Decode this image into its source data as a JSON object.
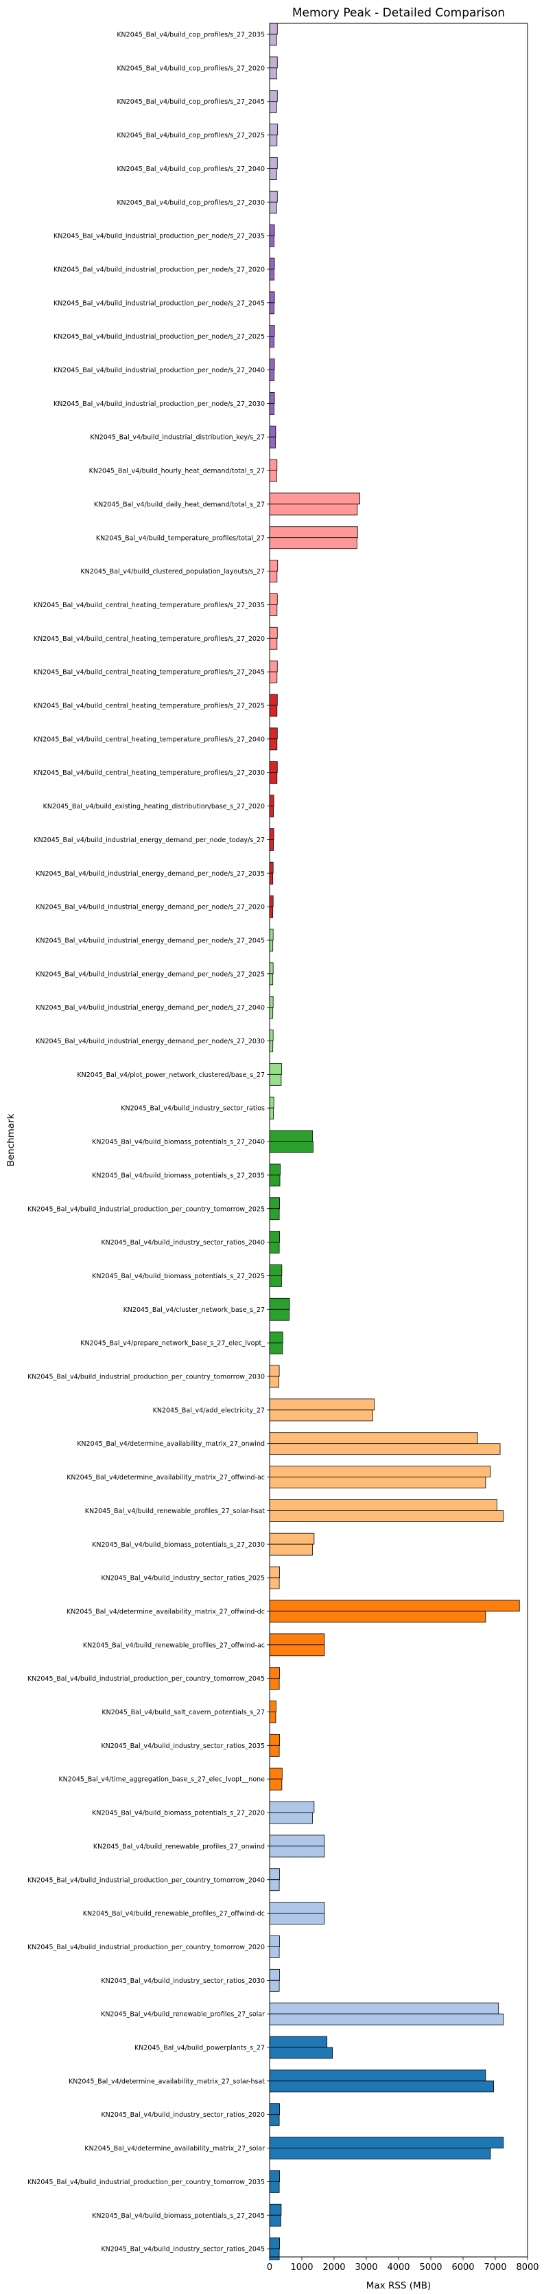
{
  "chart_data": {
    "type": "bar",
    "orientation": "horizontal",
    "title": "Memory Peak - Detailed Comparison",
    "xlabel": "Max RSS (MB)",
    "ylabel": "Benchmark",
    "xlim": [
      0,
      8000
    ],
    "xticks": [
      0,
      1000,
      2000,
      3000,
      4000,
      5000,
      6000,
      7000,
      8000
    ],
    "grid": false,
    "categories": [
      {
        "label": "KN2045_Bal_v4/build_cop_profiles/s_27_2035",
        "values": [
          240,
          220
        ],
        "color": "#c5b0d5"
      },
      {
        "label": "KN2045_Bal_v4/build_cop_profiles/s_27_2020",
        "values": [
          240,
          220
        ],
        "color": "#c5b0d5"
      },
      {
        "label": "KN2045_Bal_v4/build_cop_profiles/s_27_2045",
        "values": [
          240,
          220
        ],
        "color": "#c5b0d5"
      },
      {
        "label": "KN2045_Bal_v4/build_cop_profiles/s_27_2025",
        "values": [
          250,
          230
        ],
        "color": "#c5b0d5"
      },
      {
        "label": "KN2045_Bal_v4/build_cop_profiles/s_27_2040",
        "values": [
          240,
          220
        ],
        "color": "#c5b0d5"
      },
      {
        "label": "KN2045_Bal_v4/build_cop_profiles/s_27_2030",
        "values": [
          240,
          220
        ],
        "color": "#c5b0d5"
      },
      {
        "label": "KN2045_Bal_v4/build_industrial_production_per_node/s_27_2035",
        "values": [
          150,
          140
        ],
        "color": "#9467bd"
      },
      {
        "label": "KN2045_Bal_v4/build_industrial_production_per_node/s_27_2020",
        "values": [
          150,
          140
        ],
        "color": "#9467bd"
      },
      {
        "label": "KN2045_Bal_v4/build_industrial_production_per_node/s_27_2045",
        "values": [
          150,
          140
        ],
        "color": "#9467bd"
      },
      {
        "label": "KN2045_Bal_v4/build_industrial_production_per_node/s_27_2025",
        "values": [
          150,
          140
        ],
        "color": "#9467bd"
      },
      {
        "label": "KN2045_Bal_v4/build_industrial_production_per_node/s_27_2040",
        "values": [
          150,
          140
        ],
        "color": "#9467bd"
      },
      {
        "label": "KN2045_Bal_v4/build_industrial_production_per_node/s_27_2030",
        "values": [
          150,
          140
        ],
        "color": "#9467bd"
      },
      {
        "label": "KN2045_Bal_v4/build_industrial_distribution_key/s_27",
        "values": [
          190,
          180
        ],
        "color": "#9467bd"
      },
      {
        "label": "KN2045_Bal_v4/build_hourly_heat_demand/total_s_27",
        "values": [
          230,
          220
        ],
        "color": "#ff9896"
      },
      {
        "label": "KN2045_Bal_v4/build_daily_heat_demand/total_s_27",
        "values": [
          2800,
          2720
        ],
        "color": "#ff9896"
      },
      {
        "label": "KN2045_Bal_v4/build_temperature_profiles/total_27",
        "values": [
          2730,
          2710
        ],
        "color": "#ff9896"
      },
      {
        "label": "KN2045_Bal_v4/build_clustered_population_layouts/s_27",
        "values": [
          250,
          230
        ],
        "color": "#ff9896"
      },
      {
        "label": "KN2045_Bal_v4/build_central_heating_temperature_profiles/s_27_2035",
        "values": [
          240,
          230
        ],
        "color": "#ff9896"
      },
      {
        "label": "KN2045_Bal_v4/build_central_heating_temperature_profiles/s_27_2020",
        "values": [
          240,
          230
        ],
        "color": "#ff9896"
      },
      {
        "label": "KN2045_Bal_v4/build_central_heating_temperature_profiles/s_27_2045",
        "values": [
          240,
          230
        ],
        "color": "#ff9896"
      },
      {
        "label": "KN2045_Bal_v4/build_central_heating_temperature_profiles/s_27_2025",
        "values": [
          240,
          230
        ],
        "color": "#d62728"
      },
      {
        "label": "KN2045_Bal_v4/build_central_heating_temperature_profiles/s_27_2040",
        "values": [
          240,
          230
        ],
        "color": "#d62728"
      },
      {
        "label": "KN2045_Bal_v4/build_central_heating_temperature_profiles/s_27_2030",
        "values": [
          240,
          230
        ],
        "color": "#d62728"
      },
      {
        "label": "KN2045_Bal_v4/build_existing_heating_distribution/base_s_27_2020",
        "values": [
          130,
          120
        ],
        "color": "#d62728"
      },
      {
        "label": "KN2045_Bal_v4/build_industrial_energy_demand_per_node_today/s_27",
        "values": [
          130,
          120
        ],
        "color": "#d62728"
      },
      {
        "label": "KN2045_Bal_v4/build_industrial_energy_demand_per_node/s_27_2035",
        "values": [
          110,
          100
        ],
        "color": "#d62728"
      },
      {
        "label": "KN2045_Bal_v4/build_industrial_energy_demand_per_node/s_27_2020",
        "values": [
          110,
          100
        ],
        "color": "#d62728"
      },
      {
        "label": "KN2045_Bal_v4/build_industrial_energy_demand_per_node/s_27_2045",
        "values": [
          110,
          100
        ],
        "color": "#98df8a"
      },
      {
        "label": "KN2045_Bal_v4/build_industrial_energy_demand_per_node/s_27_2025",
        "values": [
          110,
          100
        ],
        "color": "#98df8a"
      },
      {
        "label": "KN2045_Bal_v4/build_industrial_energy_demand_per_node/s_27_2040",
        "values": [
          110,
          100
        ],
        "color": "#98df8a"
      },
      {
        "label": "KN2045_Bal_v4/build_industrial_energy_demand_per_node/s_27_2030",
        "values": [
          110,
          100
        ],
        "color": "#98df8a"
      },
      {
        "label": "KN2045_Bal_v4/plot_power_network_clustered/base_s_27",
        "values": [
          370,
          360
        ],
        "color": "#98df8a"
      },
      {
        "label": "KN2045_Bal_v4/build_industry_sector_ratios",
        "values": [
          130,
          120
        ],
        "color": "#98df8a"
      },
      {
        "label": "KN2045_Bal_v4/build_biomass_potentials_s_27_2040",
        "values": [
          1330,
          1350
        ],
        "color": "#2ca02c"
      },
      {
        "label": "KN2045_Bal_v4/build_biomass_potentials_s_27_2035",
        "values": [
          330,
          320
        ],
        "color": "#2ca02c"
      },
      {
        "label": "KN2045_Bal_v4/build_industrial_production_per_country_tomorrow_2025",
        "values": [
          310,
          300
        ],
        "color": "#2ca02c"
      },
      {
        "label": "KN2045_Bal_v4/build_industry_sector_ratios_2040",
        "values": [
          310,
          300
        ],
        "color": "#2ca02c"
      },
      {
        "label": "KN2045_Bal_v4/build_biomass_potentials_s_27_2025",
        "values": [
          380,
          370
        ],
        "color": "#2ca02c"
      },
      {
        "label": "KN2045_Bal_v4/cluster_network_base_s_27",
        "values": [
          620,
          610
        ],
        "color": "#2ca02c"
      },
      {
        "label": "KN2045_Bal_v4/prepare_network_base_s_27_elec_lvopt_",
        "values": [
          410,
          400
        ],
        "color": "#2ca02c"
      },
      {
        "label": "KN2045_Bal_v4/build_industrial_production_per_country_tomorrow_2030",
        "values": [
          300,
          290
        ],
        "color": "#ffbb78"
      },
      {
        "label": "KN2045_Bal_v4/add_electricity_27",
        "values": [
          3250,
          3200
        ],
        "color": "#ffbb78"
      },
      {
        "label": "KN2045_Bal_v4/determine_availability_matrix_27_onwind",
        "values": [
          6450,
          7150
        ],
        "color": "#ffbb78"
      },
      {
        "label": "KN2045_Bal_v4/determine_availability_matrix_27_offwind-ac",
        "values": [
          6850,
          6700
        ],
        "color": "#ffbb78"
      },
      {
        "label": "KN2045_Bal_v4/build_renewable_profiles_27_solar-hsat",
        "values": [
          7050,
          7250
        ],
        "color": "#ffbb78"
      },
      {
        "label": "KN2045_Bal_v4/build_biomass_potentials_s_27_2030",
        "values": [
          1380,
          1330
        ],
        "color": "#ffbb78"
      },
      {
        "label": "KN2045_Bal_v4/build_industry_sector_ratios_2025",
        "values": [
          310,
          300
        ],
        "color": "#ffbb78"
      },
      {
        "label": "KN2045_Bal_v4/determine_availability_matrix_27_offwind-dc",
        "values": [
          7750,
          6700
        ],
        "color": "#ff7f0e"
      },
      {
        "label": "KN2045_Bal_v4/build_renewable_profiles_27_offwind-ac",
        "values": [
          1700,
          1700
        ],
        "color": "#ff7f0e"
      },
      {
        "label": "KN2045_Bal_v4/build_industrial_production_per_country_tomorrow_2045",
        "values": [
          310,
          300
        ],
        "color": "#ff7f0e"
      },
      {
        "label": "KN2045_Bal_v4/build_salt_cavern_potentials_s_27",
        "values": [
          200,
          190
        ],
        "color": "#ff7f0e"
      },
      {
        "label": "KN2045_Bal_v4/build_industry_sector_ratios_2035",
        "values": [
          310,
          300
        ],
        "color": "#ff7f0e"
      },
      {
        "label": "KN2045_Bal_v4/time_aggregation_base_s_27_elec_lvopt__none",
        "values": [
          390,
          380
        ],
        "color": "#ff7f0e"
      },
      {
        "label": "KN2045_Bal_v4/build_biomass_potentials_s_27_2020",
        "values": [
          1380,
          1330
        ],
        "color": "#aec7e8"
      },
      {
        "label": "KN2045_Bal_v4/build_renewable_profiles_27_onwind",
        "values": [
          1700,
          1700
        ],
        "color": "#aec7e8"
      },
      {
        "label": "KN2045_Bal_v4/build_industrial_production_per_country_tomorrow_2040",
        "values": [
          310,
          300
        ],
        "color": "#aec7e8"
      },
      {
        "label": "KN2045_Bal_v4/build_renewable_profiles_27_offwind-dc",
        "values": [
          1700,
          1700
        ],
        "color": "#aec7e8"
      },
      {
        "label": "KN2045_Bal_v4/build_industrial_production_per_country_tomorrow_2020",
        "values": [
          310,
          300
        ],
        "color": "#aec7e8"
      },
      {
        "label": "KN2045_Bal_v4/build_industry_sector_ratios_2030",
        "values": [
          310,
          300
        ],
        "color": "#aec7e8"
      },
      {
        "label": "KN2045_Bal_v4/build_renewable_profiles_27_solar",
        "values": [
          7100,
          7250
        ],
        "color": "#aec7e8"
      },
      {
        "label": "KN2045_Bal_v4/build_powerplants_s_27",
        "values": [
          1780,
          1950
        ],
        "color": "#1f77b4"
      },
      {
        "label": "KN2045_Bal_v4/determine_availability_matrix_27_solar-hsat",
        "values": [
          6700,
          6950
        ],
        "color": "#1f77b4"
      },
      {
        "label": "KN2045_Bal_v4/build_industry_sector_ratios_2020",
        "values": [
          310,
          300
        ],
        "color": "#1f77b4"
      },
      {
        "label": "KN2045_Bal_v4/determine_availability_matrix_27_solar",
        "values": [
          7250,
          6850
        ],
        "color": "#1f77b4"
      },
      {
        "label": "KN2045_Bal_v4/build_industrial_production_per_country_tomorrow_2035",
        "values": [
          310,
          300
        ],
        "color": "#1f77b4"
      },
      {
        "label": "KN2045_Bal_v4/build_biomass_potentials_s_27_2045",
        "values": [
          360,
          350
        ],
        "color": "#1f77b4"
      },
      {
        "label": "KN2045_Bal_v4/build_industry_sector_ratios_2045",
        "values": [
          310,
          300
        ],
        "color": "#1f77b4"
      }
    ]
  }
}
